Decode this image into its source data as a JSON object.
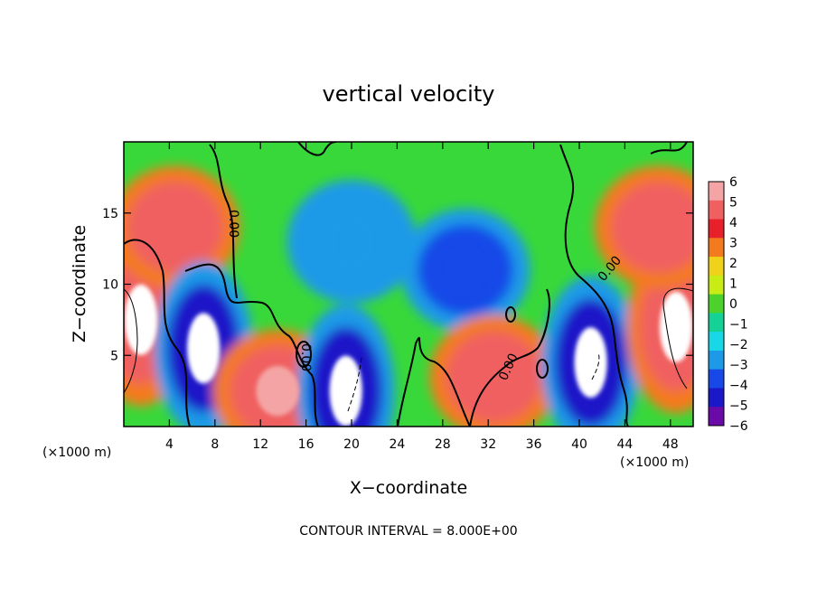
{
  "chart_data": {
    "type": "heatmap",
    "title": "vertical velocity",
    "xlabel": "X−coordinate",
    "ylabel": "Z−coordinate",
    "x_unit": "(×1000 m)",
    "y_unit": "(×1000 m)",
    "xlim": [
      0,
      50
    ],
    "ylim": [
      0,
      20
    ],
    "x_ticks": [
      4,
      8,
      12,
      16,
      20,
      24,
      28,
      32,
      36,
      40,
      44,
      48
    ],
    "y_ticks": [
      5,
      10,
      15
    ],
    "colorbar": {
      "min": -6,
      "max": 6,
      "ticks": [
        6,
        5,
        4,
        3,
        2,
        1,
        0,
        -1,
        -2,
        -3,
        -4,
        -5,
        -6
      ],
      "colors": [
        "#f4a4a4",
        "#f06060",
        "#e8202a",
        "#f47a1e",
        "#f0d21a",
        "#c8ec14",
        "#4cd22a",
        "#14d296",
        "#18d8e8",
        "#1c9ae8",
        "#1848e8",
        "#1a18c8",
        "#6a0aa8"
      ]
    },
    "footer": "CONTOUR INTERVAL = 8.000E+00",
    "contour_labels": [
      "0.00",
      "0.00",
      "0.00",
      "0.00"
    ],
    "features": [
      {
        "x": 1.5,
        "z": 7.5,
        "w": 14,
        "kind": "updraft"
      },
      {
        "x": 4.5,
        "z": 14.0,
        "w": 5,
        "kind": "updraft"
      },
      {
        "x": 7.0,
        "z": 5.5,
        "w": -11,
        "kind": "downdraft"
      },
      {
        "x": 13.5,
        "z": 2.5,
        "w": 6,
        "kind": "updraft"
      },
      {
        "x": 19.5,
        "z": 2.5,
        "w": -12,
        "kind": "downdraft"
      },
      {
        "x": 20.0,
        "z": 13.0,
        "w": -3,
        "kind": "downdraft"
      },
      {
        "x": 30.0,
        "z": 11.0,
        "w": -4,
        "kind": "downdraft"
      },
      {
        "x": 32.5,
        "z": 3.5,
        "w": 5,
        "kind": "updraft"
      },
      {
        "x": 41.0,
        "z": 4.5,
        "w": -11,
        "kind": "downdraft"
      },
      {
        "x": 48.5,
        "z": 7.0,
        "w": 14,
        "kind": "updraft"
      },
      {
        "x": 47.0,
        "z": 14.0,
        "w": 5,
        "kind": "updraft"
      }
    ]
  }
}
